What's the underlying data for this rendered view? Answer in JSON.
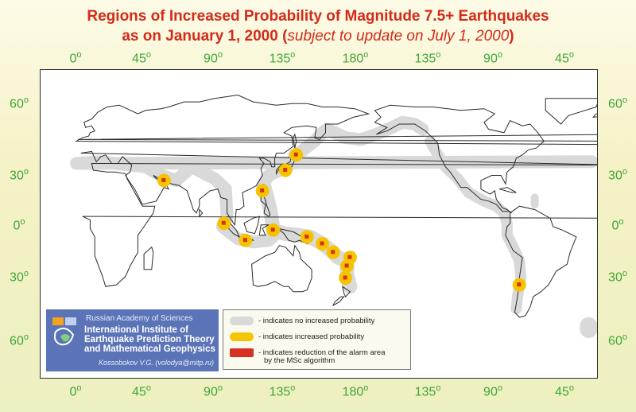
{
  "title": {
    "line1": "Regions of Increased Probability of Magnitude 7.5+ Earthquakes",
    "line2_prefix": "as on January 1, 2000 (",
    "line2_italic": "subject to update on July 1, 2000",
    "line2_suffix": ")"
  },
  "longitude_ticks": [
    "0",
    "45",
    "90",
    "135",
    "180",
    "135",
    "90",
    "45"
  ],
  "latitude_ticks": [
    "60",
    "30",
    "0",
    "30",
    "60"
  ],
  "degree_symbol": "o",
  "colors": {
    "no_increase": "#d9d9d9",
    "increased": "#f5c400",
    "reduction": "#d63020",
    "tick_text": "#3fa53a",
    "title_text": "#d42a1a",
    "coast": "#2a2a2a"
  },
  "legend": {
    "items": [
      {
        "color": "#d9d9d9",
        "label": "- indicates no increased probability"
      },
      {
        "color": "#f5c400",
        "label": "- indicates increased probability"
      },
      {
        "color": "#d63020",
        "label": "- indicates reduction of the alarm area",
        "label2": "by the MSc algorithm"
      }
    ]
  },
  "institute": {
    "org": "Russian Academy of Sciences",
    "name_line1": "International Institute of",
    "name_line2": "Earthquake Prediction Theory",
    "name_line3": "and Mathematical Geophysics",
    "author": "Kossobokov V.G. (volodya@mitp.ru)"
  },
  "map_data": {
    "type": "map",
    "projection": "equirectangular, Pacific-centered",
    "regions_no_increase": [
      "Mediterranean-Himalaya belt",
      "Kuril-Kamchatka",
      "Aleutians-Alaska",
      "North American west coast",
      "Central America",
      "Andes",
      "Indonesia arc",
      "South Sandwich"
    ],
    "regions_increased": [
      {
        "name": "Iran (Makran)",
        "lat": 27,
        "lon": 57
      },
      {
        "name": "Sumatra",
        "lat": 2,
        "lon": 96
      },
      {
        "name": "Java",
        "lat": -8,
        "lon": 110
      },
      {
        "name": "Taiwan-Philippines",
        "lat": 21,
        "lon": 121
      },
      {
        "name": "Japan south",
        "lat": 33,
        "lon": 136
      },
      {
        "name": "Japan north",
        "lat": 42,
        "lon": 143
      },
      {
        "name": "Molucca",
        "lat": -2,
        "lon": 128
      },
      {
        "name": "New Guinea",
        "lat": -6,
        "lon": 150
      },
      {
        "name": "Solomon Islands",
        "lat": -10,
        "lon": 160
      },
      {
        "name": "Vanuatu",
        "lat": -15,
        "lon": 167
      },
      {
        "name": "Fiji",
        "lat": -18,
        "lon": 178
      },
      {
        "name": "Tonga",
        "lat": -23,
        "lon": 176
      },
      {
        "name": "Kermadec",
        "lat": -30,
        "lon": 175
      },
      {
        "name": "Chile",
        "lat": -34,
        "lon": -72
      }
    ]
  }
}
